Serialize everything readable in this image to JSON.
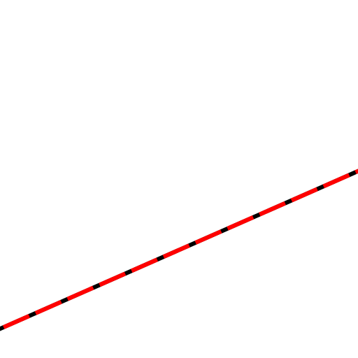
{
  "background_color": "#ffffff",
  "line": {
    "name": "dashed-diagonal-line",
    "base_color": "#000000",
    "dash_color": "#ff0000"
  }
}
